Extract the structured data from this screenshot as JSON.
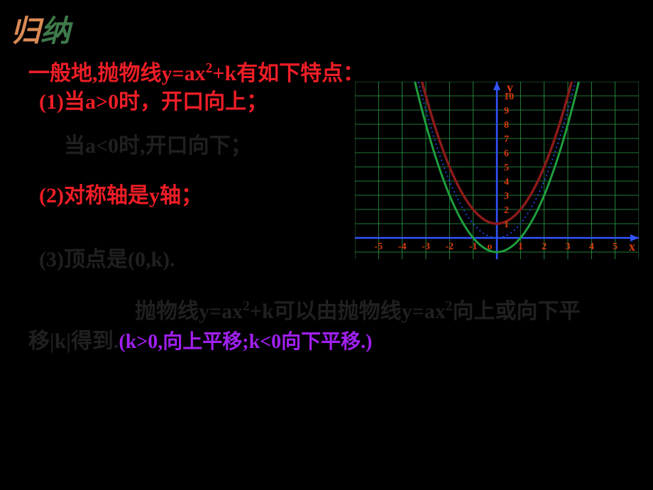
{
  "header": {
    "char1": "归",
    "char2": "纳"
  },
  "title": "一般地,抛物线y=ax²+k有如下特点：",
  "point1_line1": "(1)当a>0时，开口向上；",
  "point1_line2": "当a<0时,开口向下；",
  "point2": "(2)对称轴是y轴；",
  "point3": "(3)顶点是(0,k).",
  "paragraph_part1": "抛物线y=ax²+k可以由抛物线y=ax²向上或向下平移|k|得到.",
  "paragraph_note": "(k>0,向上平移;k<0向下平移.)",
  "chart": {
    "type": "parabola",
    "x_range": [
      -6,
      6
    ],
    "y_range": [
      -1.5,
      11
    ],
    "x_ticks": [
      -5,
      -4,
      -3,
      -2,
      -1,
      1,
      2,
      3,
      4,
      5
    ],
    "y_ticks": [
      1,
      2,
      3,
      4,
      5,
      6,
      7,
      8,
      9,
      10
    ],
    "grid_color": "#2fb24f",
    "axis_color": "#3355ff",
    "label_color": "#d93a0e",
    "tick_fontsize": 14,
    "axis_labels": {
      "x": "x",
      "y": "y"
    },
    "curves": [
      {
        "name": "red-curve",
        "color": "#8b1a1a",
        "width": 3.5,
        "style": "solid",
        "a": 1,
        "k": 1
      },
      {
        "name": "green-curve",
        "color": "#1e9e3e",
        "width": 3,
        "style": "solid",
        "a": 1,
        "k": -1
      },
      {
        "name": "dotted-curve",
        "color": "#2040d0",
        "width": 2,
        "style": "dotted",
        "a": 1,
        "k": 0
      }
    ]
  }
}
